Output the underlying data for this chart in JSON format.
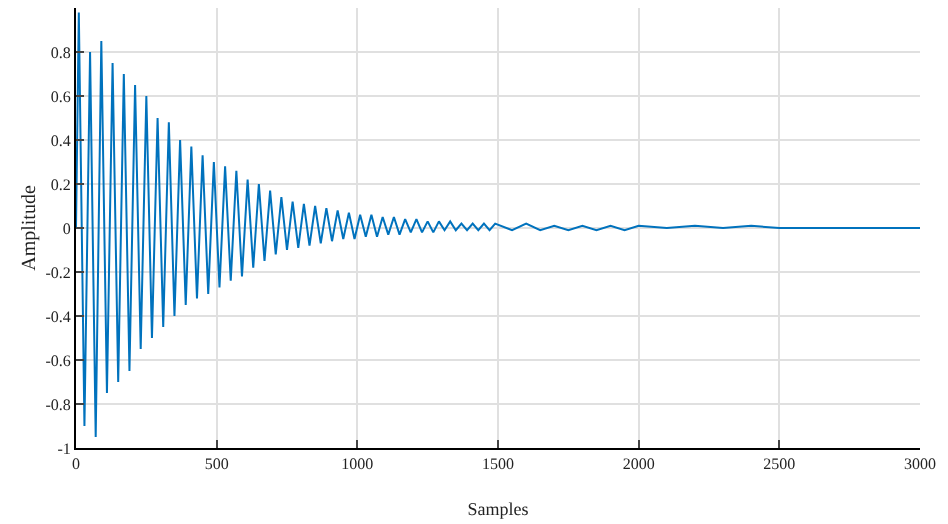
{
  "chart_data": {
    "type": "line",
    "xlabel": "Samples",
    "ylabel": "Amplitude",
    "xlim": [
      0,
      3000
    ],
    "xticks": [
      0,
      500,
      1000,
      1500,
      2000,
      2500,
      3000
    ],
    "ylim": [
      -1,
      1
    ],
    "yticks": [
      -1,
      -0.8,
      -0.6,
      -0.4,
      -0.2,
      0,
      0.2,
      0.4,
      0.6,
      0.8
    ],
    "grid": true,
    "series": [
      {
        "color": "#0072bd",
        "x": [
          0,
          10,
          30,
          50,
          70,
          90,
          110,
          130,
          150,
          170,
          190,
          210,
          230,
          250,
          270,
          290,
          310,
          330,
          350,
          370,
          390,
          410,
          430,
          450,
          470,
          490,
          510,
          530,
          550,
          570,
          590,
          610,
          630,
          650,
          670,
          690,
          710,
          730,
          750,
          770,
          790,
          810,
          830,
          850,
          870,
          890,
          910,
          930,
          950,
          970,
          990,
          1010,
          1030,
          1050,
          1070,
          1090,
          1110,
          1130,
          1150,
          1170,
          1190,
          1210,
          1230,
          1250,
          1270,
          1290,
          1310,
          1330,
          1350,
          1370,
          1390,
          1410,
          1430,
          1450,
          1470,
          1490,
          1550,
          1600,
          1650,
          1700,
          1750,
          1800,
          1850,
          1900,
          1950,
          2000,
          2100,
          2200,
          2300,
          2400,
          2500,
          2600,
          2700,
          2800,
          2900,
          3000
        ],
        "values": [
          0,
          0.98,
          -0.9,
          0.8,
          -0.95,
          0.85,
          -0.75,
          0.75,
          -0.7,
          0.7,
          -0.65,
          0.65,
          -0.55,
          0.6,
          -0.5,
          0.5,
          -0.45,
          0.48,
          -0.4,
          0.4,
          -0.35,
          0.37,
          -0.32,
          0.33,
          -0.3,
          0.3,
          -0.27,
          0.28,
          -0.24,
          0.26,
          -0.22,
          0.22,
          -0.18,
          0.2,
          -0.15,
          0.17,
          -0.12,
          0.14,
          -0.1,
          0.12,
          -0.09,
          0.11,
          -0.08,
          0.1,
          -0.07,
          0.09,
          -0.06,
          0.08,
          -0.05,
          0.07,
          -0.05,
          0.06,
          -0.04,
          0.06,
          -0.04,
          0.05,
          -0.03,
          0.05,
          -0.03,
          0.04,
          -0.02,
          0.04,
          -0.02,
          0.03,
          -0.02,
          0.03,
          -0.01,
          0.03,
          -0.01,
          0.02,
          -0.01,
          0.02,
          -0.01,
          0.02,
          -0.01,
          0.02,
          -0.01,
          0.02,
          -0.01,
          0.01,
          -0.01,
          0.01,
          -0.01,
          0.01,
          -0.01,
          0.01,
          0,
          0.01,
          0,
          0.01,
          0,
          0,
          0,
          0,
          0,
          0
        ]
      }
    ]
  }
}
